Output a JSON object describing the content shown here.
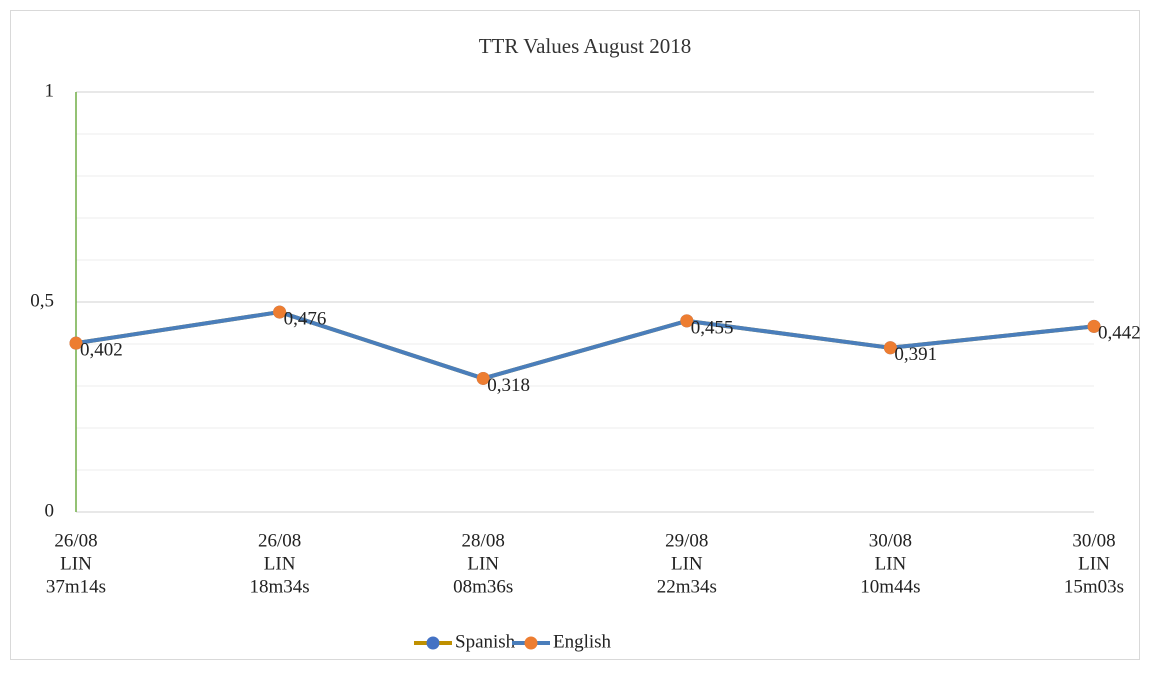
{
  "chart_data": {
    "type": "line",
    "title": "TTR Values August 2018",
    "categories": [
      [
        "26/08",
        "LIN",
        "37m14s"
      ],
      [
        "26/08",
        "LIN",
        "18m34s"
      ],
      [
        "28/08",
        "LIN",
        "08m36s"
      ],
      [
        "29/08",
        "LIN",
        "22m34s"
      ],
      [
        "30/08",
        "LIN",
        "10m44s"
      ],
      [
        "30/08",
        "LIN",
        "15m03s"
      ]
    ],
    "series": [
      {
        "name": "Spanish",
        "color": "#bf9000",
        "marker_color": "#4472c4",
        "values": [
          0.402,
          0.476,
          0.318,
          0.455,
          0.391,
          0.442
        ]
      },
      {
        "name": "English",
        "color": "#4a7ebb",
        "marker_color": "#ed7d31",
        "values": [
          0.402,
          0.476,
          0.318,
          0.455,
          0.391,
          0.442
        ],
        "value_labels": [
          "0,402",
          "0,476",
          "0,318",
          "0,455",
          "0,391",
          "0,442"
        ]
      }
    ],
    "ylim": [
      0,
      1
    ],
    "yticks": [
      0,
      {
        "value": 0.5,
        "label": "0,5"
      },
      1
    ],
    "minor_grid": [
      0.1,
      0.2,
      0.3,
      0.4,
      0.6,
      0.7,
      0.8,
      0.9
    ],
    "grid": true,
    "legend": "bottom"
  }
}
